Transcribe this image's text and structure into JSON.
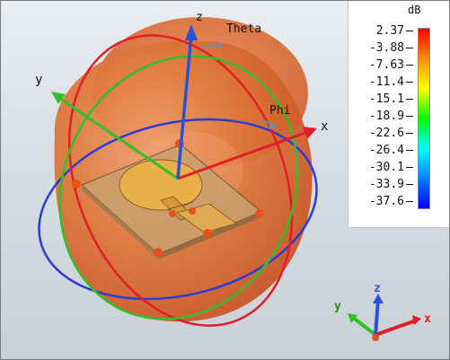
{
  "viewport": {
    "axis_labels": {
      "z": "z",
      "theta": "Theta",
      "y": "y",
      "phi": "Phi",
      "x": "x"
    },
    "mini_axes": {
      "x": "x",
      "y": "y",
      "z": "z"
    },
    "colors": {
      "pattern": "#e06a2a",
      "x_axis": "#e0242a",
      "y_axis": "#33c02a",
      "z_axis": "#2a52d8"
    }
  },
  "legend": {
    "unit": "dB",
    "max_label": "2.37",
    "ticks": [
      "-3.88",
      "-7.63",
      "-11.4",
      "-15.1",
      "-18.9",
      "-22.6",
      "-26.4",
      "-30.1",
      "-33.9",
      "-37.6"
    ],
    "colormap": [
      "#ff0000",
      "#ff8c00",
      "#ffff00",
      "#00ff00",
      "#00ffff",
      "#0080ff",
      "#0000ff"
    ]
  }
}
